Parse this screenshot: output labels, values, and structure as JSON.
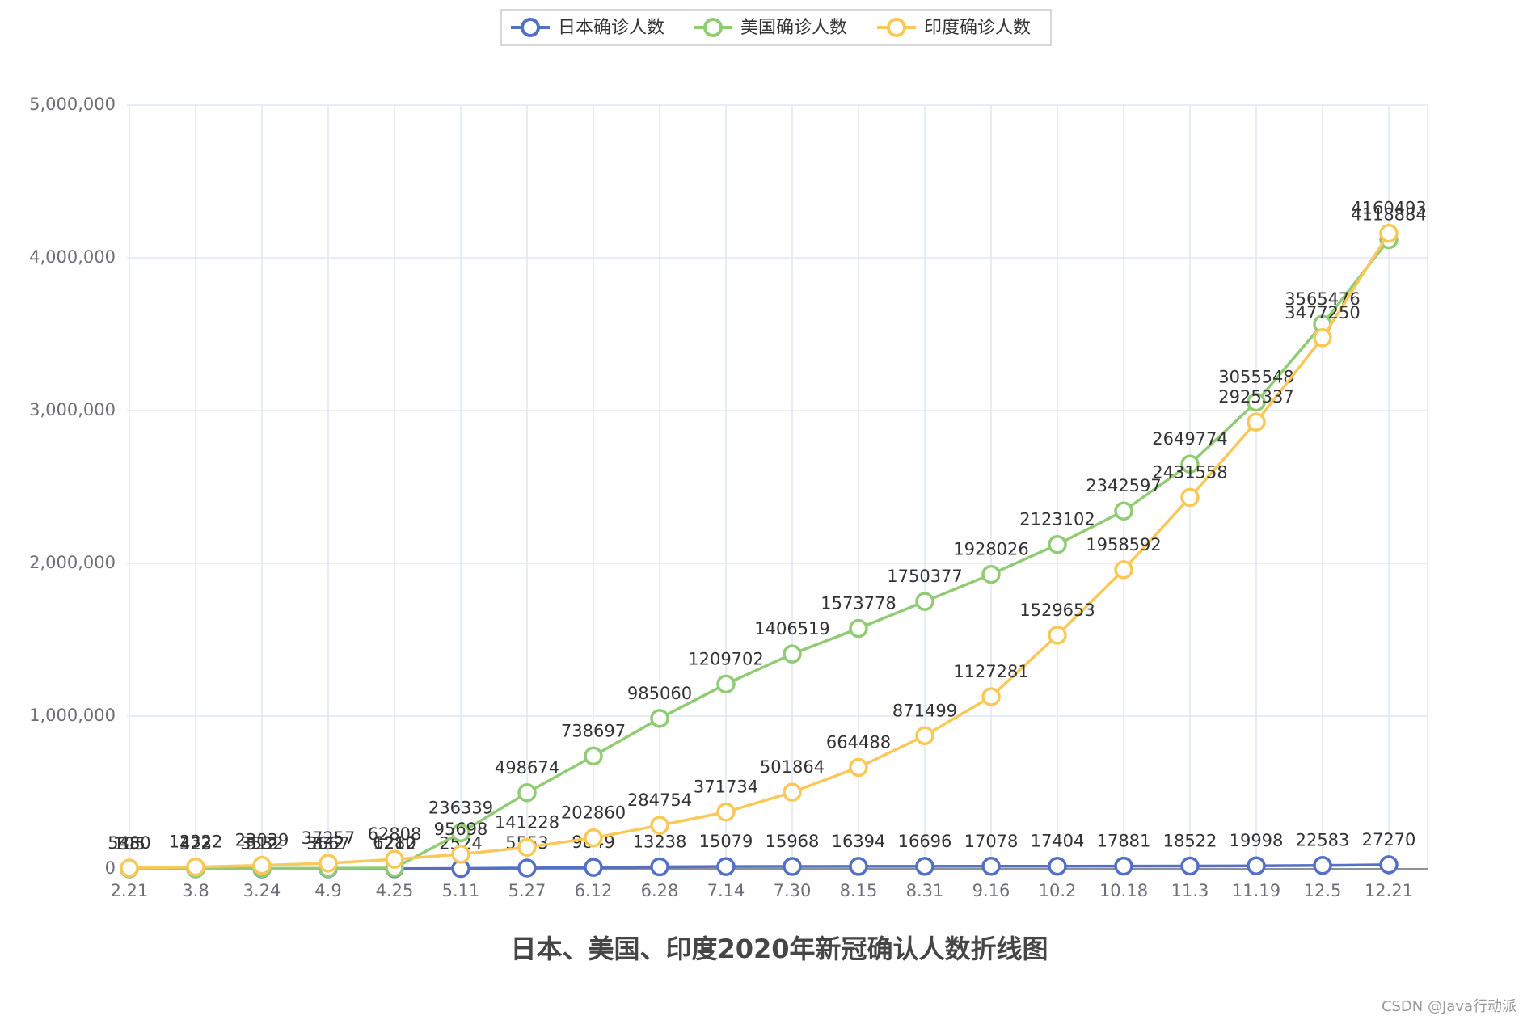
{
  "chart_data": {
    "type": "line",
    "title": "日本、美国、印度2020年新冠确认人数折线图",
    "watermark": "CSDN @Java行动派",
    "categories": [
      "2.21",
      "3.8",
      "3.24",
      "4.9",
      "4.25",
      "5.11",
      "5.27",
      "6.12",
      "6.28",
      "7.14",
      "7.30",
      "8.15",
      "8.31",
      "9.16",
      "10.2",
      "10.18",
      "11.3",
      "11.19",
      "12.5",
      "12.21"
    ],
    "series": [
      {
        "name": "日本确诊人数",
        "color": "#5470c6",
        "values": [
          105,
          322,
          512,
          832,
          1212,
          2524,
          5553,
          9849,
          13238,
          15079,
          15968,
          16394,
          16696,
          17078,
          17404,
          17881,
          18522,
          19998,
          22583,
          27270
        ]
      },
      {
        "name": "美国确诊人数",
        "color": "#91cc75",
        "values": [
          35,
          423,
          3532,
          3667,
          6280,
          236339,
          498674,
          738697,
          985060,
          1209702,
          1406519,
          1573778,
          1750377,
          1928026,
          2123102,
          2342597,
          2649774,
          3055548,
          3565476,
          4118884
        ]
      },
      {
        "name": "印度确诊人数",
        "color": "#fac858",
        "values": [
          5480,
          12322,
          23039,
          37257,
          62808,
          95698,
          141228,
          202860,
          284754,
          371734,
          501864,
          664488,
          871499,
          1127281,
          1529653,
          1958592,
          2431558,
          2925337,
          3477250,
          4160493
        ]
      }
    ],
    "ylim": [
      0,
      5000000
    ],
    "yticks": [
      0,
      {
        "value": 1000000,
        "label": "1,000,000"
      },
      {
        "value": 2000000,
        "label": "2,000,000"
      },
      {
        "value": 3000000,
        "label": "3,000,000"
      },
      {
        "value": 4000000,
        "label": "4,000,000"
      },
      {
        "value": 5000000,
        "label": "5,000,000"
      }
    ],
    "grid": true
  }
}
